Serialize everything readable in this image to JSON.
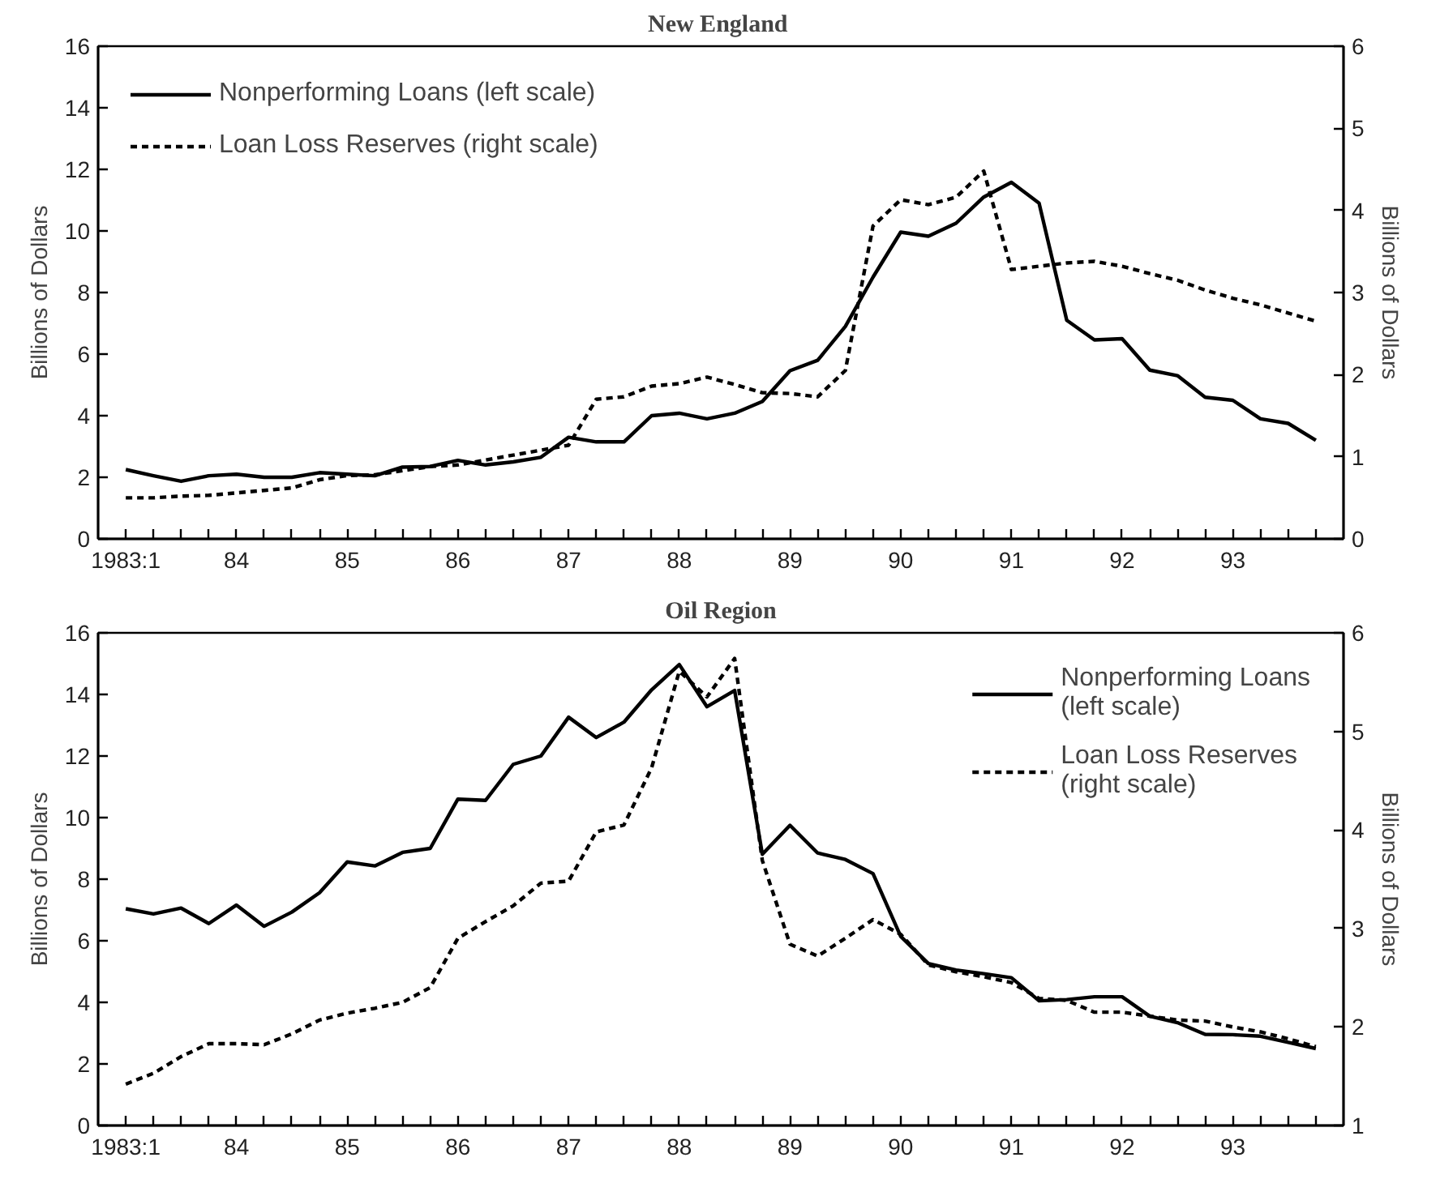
{
  "chart_data": [
    {
      "type": "line",
      "title": "New  England",
      "ylabel": "Billions of Dollars",
      "y2label": "Billions of Dollars",
      "legend": "top left",
      "x": [
        1983,
        1983.25,
        1983.5,
        1983.75,
        1984,
        1984.25,
        1984.5,
        1984.75,
        1985,
        1985.25,
        1985.5,
        1985.75,
        1986,
        1986.25,
        1986.5,
        1986.75,
        1987,
        1987.25,
        1987.5,
        1987.75,
        1988,
        1988.25,
        1988.5,
        1988.75,
        1989,
        1989.25,
        1989.5,
        1989.75,
        1990,
        1990.25,
        1990.5,
        1990.75,
        1991,
        1991.25,
        1991.5,
        1991.75,
        1992,
        1992.25,
        1992.5,
        1992.75,
        1993,
        1993.25,
        1993.5,
        1993.75
      ],
      "xlim": [
        1982.75,
        1994.0
      ],
      "xticks": [
        {
          "value": 1983,
          "label": "1983:1"
        },
        {
          "value": 1983.25,
          "label": null
        },
        {
          "value": 1983.5,
          "label": null
        },
        {
          "value": 1983.75,
          "label": null
        },
        {
          "value": 1984,
          "label": "84"
        },
        {
          "value": 1984.25,
          "label": null
        },
        {
          "value": 1984.5,
          "label": null
        },
        {
          "value": 1984.75,
          "label": null
        },
        {
          "value": 1985,
          "label": "85"
        },
        {
          "value": 1985.25,
          "label": null
        },
        {
          "value": 1985.5,
          "label": null
        },
        {
          "value": 1985.75,
          "label": null
        },
        {
          "value": 1986,
          "label": "86"
        },
        {
          "value": 1986.25,
          "label": null
        },
        {
          "value": 1986.5,
          "label": null
        },
        {
          "value": 1986.75,
          "label": null
        },
        {
          "value": 1987,
          "label": "87"
        },
        {
          "value": 1987.25,
          "label": null
        },
        {
          "value": 1987.5,
          "label": null
        },
        {
          "value": 1987.75,
          "label": null
        },
        {
          "value": 1988,
          "label": "88"
        },
        {
          "value": 1988.25,
          "label": null
        },
        {
          "value": 1988.5,
          "label": null
        },
        {
          "value": 1988.75,
          "label": null
        },
        {
          "value": 1989,
          "label": "89"
        },
        {
          "value": 1989.25,
          "label": null
        },
        {
          "value": 1989.5,
          "label": null
        },
        {
          "value": 1989.75,
          "label": null
        },
        {
          "value": 1990,
          "label": "90"
        },
        {
          "value": 1990.25,
          "label": null
        },
        {
          "value": 1990.5,
          "label": null
        },
        {
          "value": 1990.75,
          "label": null
        },
        {
          "value": 1991,
          "label": "91"
        },
        {
          "value": 1991.25,
          "label": null
        },
        {
          "value": 1991.5,
          "label": null
        },
        {
          "value": 1991.75,
          "label": null
        },
        {
          "value": 1992,
          "label": "92"
        },
        {
          "value": 1992.25,
          "label": null
        },
        {
          "value": 1992.5,
          "label": null
        },
        {
          "value": 1992.75,
          "label": null
        },
        {
          "value": 1993,
          "label": "93"
        },
        {
          "value": 1993.25,
          "label": null
        },
        {
          "value": 1993.5,
          "label": null
        },
        {
          "value": 1993.75,
          "label": null
        }
      ],
      "ylim": [
        0,
        16
      ],
      "yticks": [
        0,
        2,
        4,
        6,
        8,
        10,
        12,
        14,
        16
      ],
      "y2lim": [
        0,
        6
      ],
      "y2ticks": [
        0,
        1,
        2,
        3,
        4,
        5,
        6
      ],
      "series": [
        {
          "name": "Nonperforming Loans (left scale)",
          "color": "#000000",
          "line_style": "solid",
          "axis": "y",
          "values": [
            2.25,
            2.05,
            1.87,
            2.05,
            2.1,
            2.0,
            2.0,
            2.15,
            2.1,
            2.05,
            2.33,
            2.35,
            2.55,
            2.4,
            2.5,
            2.65,
            3.3,
            3.15,
            3.15,
            4.0,
            4.08,
            3.9,
            4.08,
            4.46,
            5.46,
            5.8,
            6.9,
            8.5,
            9.96,
            9.83,
            10.25,
            11.1,
            11.58,
            10.9,
            7.1,
            6.46,
            6.5,
            5.48,
            5.3,
            4.6,
            4.5,
            3.9,
            3.75,
            3.2
          ]
        },
        {
          "name": "Loan Loss Reserves (right scale)",
          "color": "#000000",
          "line_style": "dashed",
          "axis": "y2",
          "values": [
            0.5,
            0.5,
            0.52,
            0.53,
            0.56,
            0.59,
            0.62,
            0.72,
            0.77,
            0.78,
            0.83,
            0.88,
            0.9,
            0.96,
            1.02,
            1.08,
            1.14,
            1.7,
            1.73,
            1.86,
            1.89,
            1.97,
            1.88,
            1.78,
            1.77,
            1.73,
            2.05,
            3.81,
            4.13,
            4.07,
            4.16,
            4.48,
            3.28,
            3.32,
            3.36,
            3.38,
            3.32,
            3.23,
            3.15,
            3.03,
            2.93,
            2.85,
            2.75,
            2.65
          ]
        }
      ]
    },
    {
      "type": "line",
      "title": "Oil Region",
      "ylabel": "Billions of Dollars",
      "y2label": "Billions of Dollars",
      "legend": "top right",
      "x": [
        1983,
        1983.25,
        1983.5,
        1983.75,
        1984,
        1984.25,
        1984.5,
        1984.75,
        1985,
        1985.25,
        1985.5,
        1985.75,
        1986,
        1986.25,
        1986.5,
        1986.75,
        1987,
        1987.25,
        1987.5,
        1987.75,
        1988,
        1988.25,
        1988.5,
        1988.75,
        1989,
        1989.25,
        1989.5,
        1989.75,
        1990,
        1990.25,
        1990.5,
        1990.75,
        1991,
        1991.25,
        1991.5,
        1991.75,
        1992,
        1992.25,
        1992.5,
        1992.75,
        1993,
        1993.25,
        1993.5,
        1993.75
      ],
      "xlim": [
        1982.75,
        1994.0
      ],
      "xticks": [
        {
          "value": 1983,
          "label": "1983:1"
        },
        {
          "value": 1983.25,
          "label": null
        },
        {
          "value": 1983.5,
          "label": null
        },
        {
          "value": 1983.75,
          "label": null
        },
        {
          "value": 1984,
          "label": "84"
        },
        {
          "value": 1984.25,
          "label": null
        },
        {
          "value": 1984.5,
          "label": null
        },
        {
          "value": 1984.75,
          "label": null
        },
        {
          "value": 1985,
          "label": "85"
        },
        {
          "value": 1985.25,
          "label": null
        },
        {
          "value": 1985.5,
          "label": null
        },
        {
          "value": 1985.75,
          "label": null
        },
        {
          "value": 1986,
          "label": "86"
        },
        {
          "value": 1986.25,
          "label": null
        },
        {
          "value": 1986.5,
          "label": null
        },
        {
          "value": 1986.75,
          "label": null
        },
        {
          "value": 1987,
          "label": "87"
        },
        {
          "value": 1987.25,
          "label": null
        },
        {
          "value": 1987.5,
          "label": null
        },
        {
          "value": 1987.75,
          "label": null
        },
        {
          "value": 1988,
          "label": "88"
        },
        {
          "value": 1988.25,
          "label": null
        },
        {
          "value": 1988.5,
          "label": null
        },
        {
          "value": 1988.75,
          "label": null
        },
        {
          "value": 1989,
          "label": "89"
        },
        {
          "value": 1989.25,
          "label": null
        },
        {
          "value": 1989.5,
          "label": null
        },
        {
          "value": 1989.75,
          "label": null
        },
        {
          "value": 1990,
          "label": "90"
        },
        {
          "value": 1990.25,
          "label": null
        },
        {
          "value": 1990.5,
          "label": null
        },
        {
          "value": 1990.75,
          "label": null
        },
        {
          "value": 1991,
          "label": "91"
        },
        {
          "value": 1991.25,
          "label": null
        },
        {
          "value": 1991.5,
          "label": null
        },
        {
          "value": 1991.75,
          "label": null
        },
        {
          "value": 1992,
          "label": "92"
        },
        {
          "value": 1992.25,
          "label": null
        },
        {
          "value": 1992.5,
          "label": null
        },
        {
          "value": 1992.75,
          "label": null
        },
        {
          "value": 1993,
          "label": "93"
        },
        {
          "value": 1993.25,
          "label": null
        },
        {
          "value": 1993.5,
          "label": null
        },
        {
          "value": 1993.75,
          "label": null
        }
      ],
      "ylim": [
        0,
        16
      ],
      "yticks": [
        0,
        2,
        4,
        6,
        8,
        10,
        12,
        14,
        16
      ],
      "y2lim": [
        1,
        6
      ],
      "y2ticks": [
        1,
        2,
        3,
        4,
        5,
        6
      ],
      "series": [
        {
          "name": "Nonperforming Loans\n(left scale)",
          "color": "#000000",
          "line_style": "solid",
          "axis": "y",
          "values": [
            7.04,
            6.87,
            7.06,
            6.56,
            7.16,
            6.47,
            6.93,
            7.56,
            8.56,
            8.43,
            8.87,
            9.0,
            10.6,
            10.56,
            11.73,
            12.0,
            13.26,
            12.6,
            13.1,
            14.15,
            14.97,
            13.6,
            14.13,
            8.81,
            9.75,
            8.85,
            8.64,
            8.18,
            6.14,
            5.26,
            5.05,
            4.93,
            4.8,
            4.05,
            4.09,
            4.18,
            4.18,
            3.55,
            3.34,
            2.96,
            2.95,
            2.9,
            2.7,
            2.5
          ]
        },
        {
          "name": "Loan Loss Reserves\n(right scale)",
          "color": "#000000",
          "line_style": "dashed",
          "axis": "y2",
          "values": [
            1.42,
            1.53,
            1.7,
            1.83,
            1.83,
            1.82,
            1.93,
            2.07,
            2.14,
            2.19,
            2.25,
            2.4,
            2.9,
            3.07,
            3.23,
            3.46,
            3.48,
            3.98,
            4.05,
            4.63,
            5.61,
            5.35,
            5.74,
            3.69,
            2.84,
            2.72,
            2.9,
            3.09,
            2.94,
            2.63,
            2.56,
            2.51,
            2.45,
            2.29,
            2.27,
            2.15,
            2.15,
            2.11,
            2.07,
            2.06,
            2.0,
            1.95,
            1.88,
            1.8
          ]
        }
      ]
    }
  ]
}
